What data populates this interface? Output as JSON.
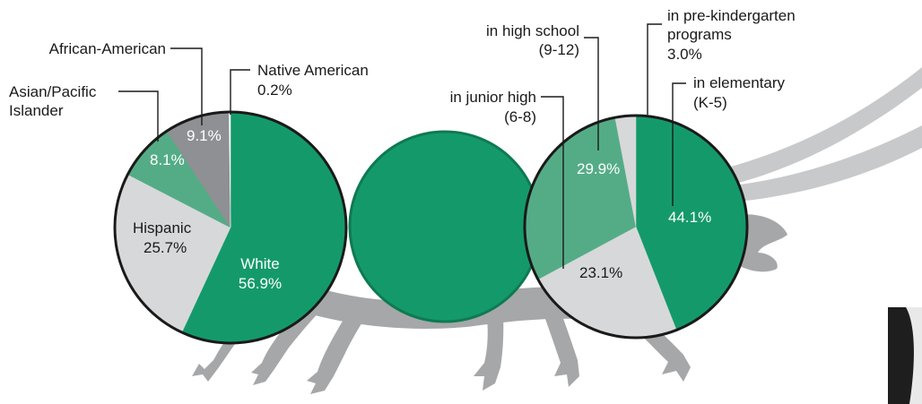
{
  "colors": {
    "dark_green": "#149a6a",
    "mid_green": "#54ac86",
    "light_gray": "#d7d8da",
    "dark_gray": "#8f9093",
    "body_gray": "#a6a7a9",
    "antenna_gray": "#c8c9cb",
    "outline": "#1a1a1a"
  },
  "chart_data": [
    {
      "type": "pie",
      "series": [
        {
          "name": "White",
          "value": 56.9,
          "label": "56.9%"
        },
        {
          "name": "Hispanic",
          "value": 25.7,
          "label": "25.7%"
        },
        {
          "name": "Asian/Pacific Islander",
          "value": 8.1,
          "label": "8.1%"
        },
        {
          "name": "African-American",
          "value": 9.1,
          "label": "9.1%"
        },
        {
          "name": "Native American",
          "value": 0.2,
          "label": "0.2%"
        }
      ],
      "labels": {
        "white_name": "White",
        "hispanic_name": "Hispanic",
        "asian_line1": "Asian/Pacific",
        "asian_line2": "Islander",
        "african_name": "African-American",
        "native_name": "Native American"
      }
    },
    {
      "type": "pie",
      "series": [
        {
          "name": "in elementary (K-5)",
          "value": 44.1,
          "label": "44.1%"
        },
        {
          "name": "in junior high (6-8)",
          "value": 23.1,
          "label": "23.1%"
        },
        {
          "name": "in high school (9-12)",
          "value": 29.9,
          "label": "29.9%"
        },
        {
          "name": "in pre-kindergarten programs",
          "value": 3.0,
          "label": "3.0%"
        }
      ],
      "labels": {
        "elementary_line1": "in elementary",
        "elementary_line2": "(K-5)",
        "junior_line1": "in junior high",
        "junior_line2": "(6-8)",
        "high_line1": "in high school",
        "high_line2": "(9-12)",
        "prek_line1": "in pre-kindergarten",
        "prek_line2": "programs"
      }
    }
  ]
}
